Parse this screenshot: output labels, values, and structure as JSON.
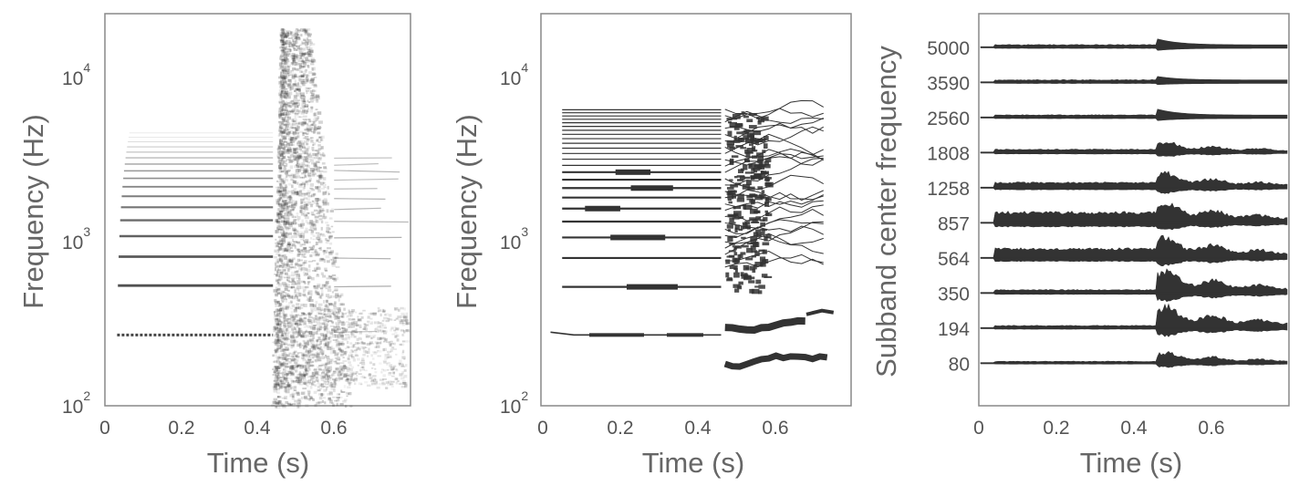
{
  "colors": {
    "ink": "#333333",
    "axis": "#888888",
    "text": "#666666"
  },
  "chart_data": [
    {
      "type": "heatmap",
      "description_kind": "spectrogram",
      "xlabel": "Time (s)",
      "ylabel": "Frequency (Hz)",
      "xlim": [
        0,
        0.8
      ],
      "ylim": [
        100,
        22000
      ],
      "yscale": "log",
      "x_ticks": [
        "0",
        "0.2",
        "0.4",
        "0.6"
      ],
      "x_tick_values": [
        0,
        0.2,
        0.4,
        0.6
      ],
      "y_ticks": [
        {
          "value": 100,
          "base": "10",
          "exp": "2"
        },
        {
          "value": 1000,
          "base": "10",
          "exp": "3"
        },
        {
          "value": 10000,
          "base": "10",
          "exp": "4"
        }
      ],
      "harmonic_f0_hz": 270,
      "harmonics_count": 17,
      "harmonic_onset_s": 0.03,
      "onset_s": 0.44,
      "burst_end_s": 0.6,
      "burst_max_freq_hz": 20000,
      "decay_end_s": 0.8
    },
    {
      "type": "line",
      "description_kind": "sinusoidal tracks",
      "xlabel": "Time (s)",
      "ylabel": "Frequency (Hz)",
      "xlim": [
        0,
        0.8
      ],
      "ylim": [
        100,
        22000
      ],
      "yscale": "log",
      "x_ticks": [
        "0",
        "0.2",
        "0.4",
        "0.6"
      ],
      "x_tick_values": [
        0,
        0.2,
        0.4,
        0.6
      ],
      "y_ticks": [
        {
          "value": 100,
          "base": "10",
          "exp": "2"
        },
        {
          "value": 1000,
          "base": "10",
          "exp": "3"
        },
        {
          "value": 10000,
          "base": "10",
          "exp": "4"
        }
      ],
      "tracks_start_s": 0.05,
      "tracks_end_s": 0.46,
      "onset_s": 0.47,
      "end_s": 0.75,
      "max_track_freq_hz": 6400
    },
    {
      "type": "line",
      "description_kind": "subband envelopes",
      "xlabel": "Time (s)",
      "ylabel": "Subband center frequency",
      "xlim": [
        0,
        0.8
      ],
      "x_ticks": [
        "0",
        "0.2",
        "0.4",
        "0.6"
      ],
      "x_tick_values": [
        0,
        0.2,
        0.4,
        0.6
      ],
      "categories": [
        "5000",
        "3590",
        "2560",
        "1808",
        "1258",
        "857",
        "564",
        "350",
        "194",
        "80"
      ],
      "onset_s": 0.46,
      "sustain_amplitude": [
        0.2,
        0.2,
        0.2,
        0.25,
        0.4,
        0.8,
        0.7,
        0.25,
        0.2,
        0.15
      ],
      "onset_amplitude": [
        0.5,
        0.3,
        0.5,
        0.5,
        0.7,
        1.0,
        1.0,
        1.0,
        1.0,
        0.5
      ]
    }
  ]
}
